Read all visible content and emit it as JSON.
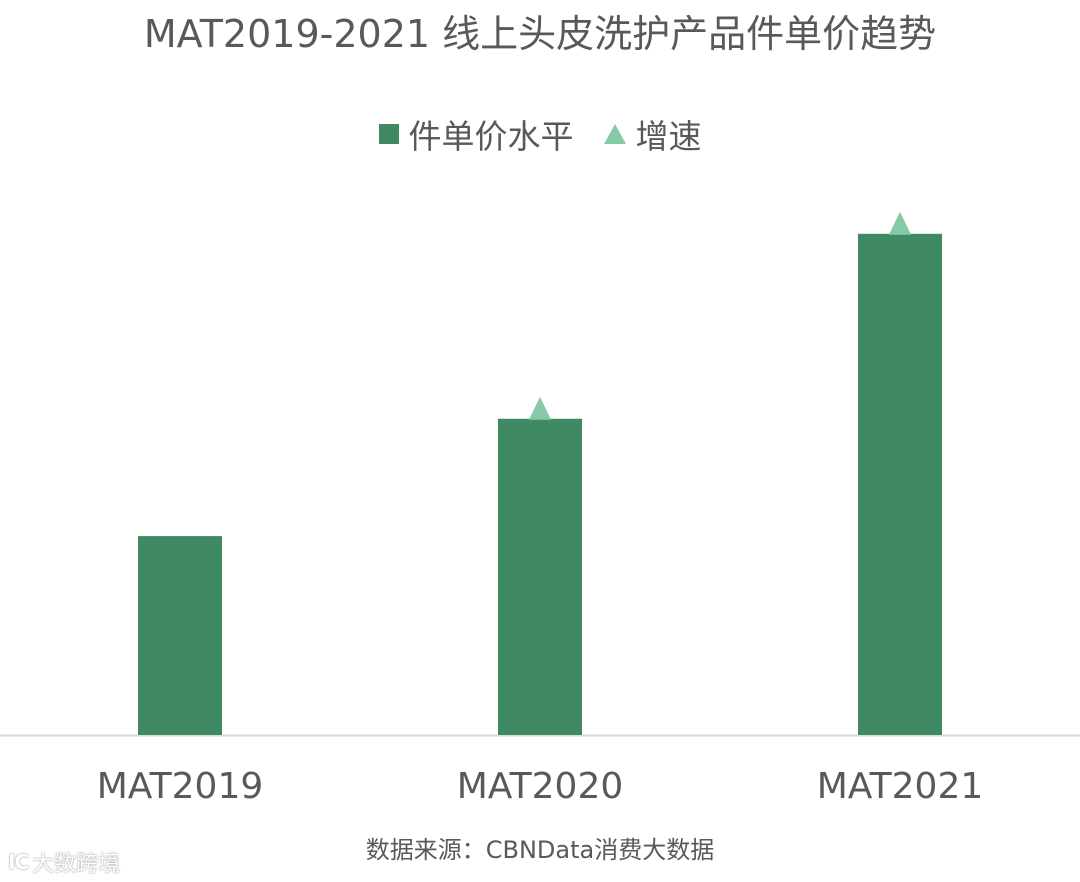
{
  "chart_data": {
    "type": "bar",
    "title": "MAT2019-2021 线上头皮洗护产品件单价趋势",
    "categories": [
      "MAT2019",
      "MAT2020",
      "MAT2021"
    ],
    "series": [
      {
        "name": "件单价水平",
        "type": "bar",
        "values": [
          100,
          159,
          252
        ],
        "color": "#3f8a63"
      },
      {
        "name": "增速",
        "type": "marker-triangle",
        "values": [
          null,
          159,
          252
        ],
        "color": "#86c9a6"
      }
    ],
    "ylim": [
      0,
      270
    ],
    "grid": false,
    "legend": "top",
    "xlabel": "",
    "ylabel": ""
  },
  "source": "数据来源：CBNData消费大数据",
  "watermark": {
    "logo": "IC",
    "text": "大数跨境"
  },
  "colors": {
    "bar": "#3f8a63",
    "marker": "#86c9a6",
    "axis": "#d9d9d9",
    "text": "#595959"
  }
}
